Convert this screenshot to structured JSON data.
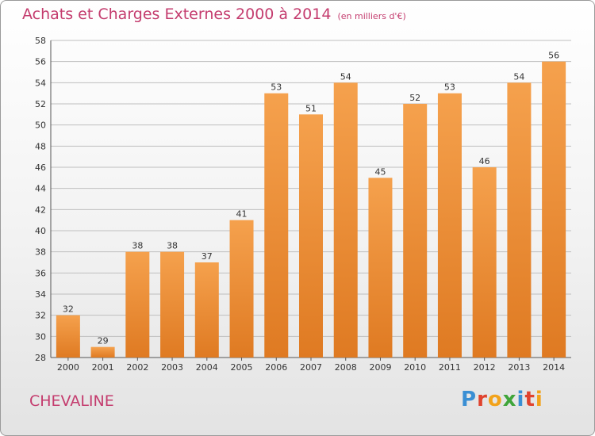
{
  "header": {
    "title": "Achats et Charges Externes 2000 à 2014",
    "unit": "(en milliers d'€)"
  },
  "footer": {
    "place": "CHEVALINE",
    "logo_text": "Proxiti"
  },
  "colors": {
    "accent_text": "#c43c6e",
    "bar_top": "#f5a14d",
    "bar_bottom": "#df7a22",
    "grid": "#bfbfbf",
    "logo_letters": [
      "#3a8fd4",
      "#e0432e",
      "#f2a31b",
      "#3fa53a",
      "#3a8fd4",
      "#e0432e",
      "#f2a31b"
    ]
  },
  "chart_data": {
    "type": "bar",
    "title": "Achats et Charges Externes 2000 à 2014",
    "subtitle": "(en milliers d'€)",
    "categories": [
      "2000",
      "2001",
      "2002",
      "2003",
      "2004",
      "2005",
      "2006",
      "2007",
      "2008",
      "2009",
      "2010",
      "2011",
      "2012",
      "2013",
      "2014"
    ],
    "values": [
      32,
      29,
      38,
      38,
      37,
      41,
      53,
      51,
      54,
      45,
      52,
      53,
      46,
      54,
      56
    ],
    "ylim": [
      28,
      58
    ],
    "yticks": [
      28,
      30,
      32,
      34,
      36,
      38,
      40,
      42,
      44,
      46,
      48,
      50,
      52,
      54,
      56,
      58
    ],
    "grid": true,
    "data_labels": true
  }
}
